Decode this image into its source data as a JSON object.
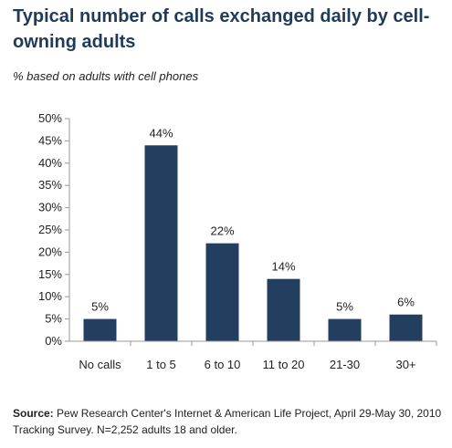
{
  "title": "Typical number of calls exchanged daily by cell-owning adults",
  "subtitle": "% based on adults with cell phones",
  "source": {
    "label": "Source:",
    "text": "Pew Research Center's Internet & American Life Project, April 29-May 30, 2010 Tracking Survey. N=2,252 adults 18 and older."
  },
  "colors": {
    "bar": "#233f60",
    "axis": "#9a9a9a",
    "title": "#1f3b5a"
  },
  "chart_data": {
    "type": "bar",
    "title": "Typical number of calls exchanged daily by cell-owning adults",
    "xlabel": "",
    "ylabel": "",
    "categories": [
      "No calls",
      "1 to 5",
      "6 to 10",
      "11 to 20",
      "21-30",
      "30+"
    ],
    "values": [
      5,
      44,
      22,
      14,
      5,
      6
    ],
    "data_labels": [
      "5%",
      "44%",
      "22%",
      "14%",
      "5%",
      "6%"
    ],
    "ylim": [
      0,
      50
    ],
    "yticks": [
      0,
      5,
      10,
      15,
      20,
      25,
      30,
      35,
      40,
      45,
      50
    ],
    "ytick_labels": [
      "0%",
      "5%",
      "10%",
      "15%",
      "20%",
      "25%",
      "30%",
      "35%",
      "40%",
      "45%",
      "50%"
    ],
    "grid": false,
    "legend": "none"
  }
}
